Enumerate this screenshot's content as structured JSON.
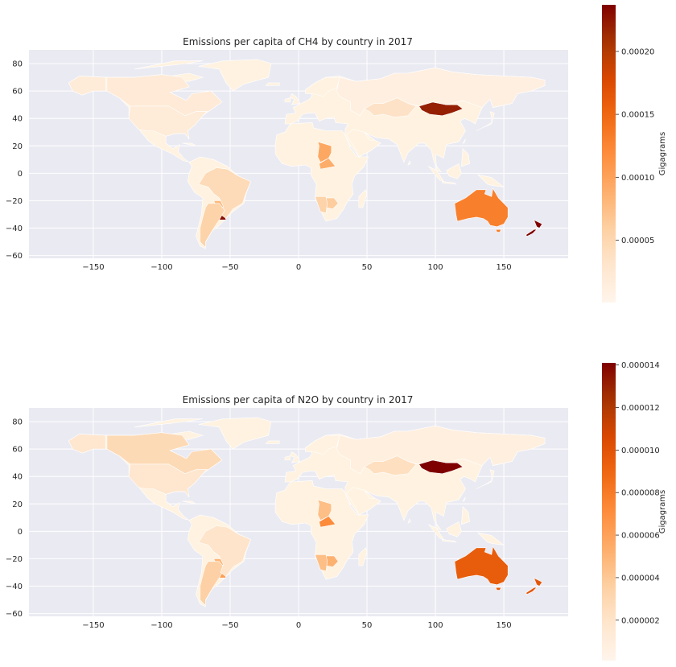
{
  "panels": [
    {
      "title": "Emissions per capita of CH4 by country in 2017",
      "colorbar": {
        "label": "Gigagrams",
        "min": 5e-07,
        "max": 0.000237,
        "ticks": [
          "0.00005",
          "0.00010",
          "0.00015",
          "0.00020"
        ],
        "tick_values": [
          5e-05,
          0.0001,
          0.00015,
          0.0002
        ]
      },
      "regions": [
        {
          "name": "Mongolia",
          "value": 0.00022
        },
        {
          "name": "Uruguay",
          "value": 0.00023
        },
        {
          "name": "New Zealand",
          "value": 0.000237
        },
        {
          "name": "Australia",
          "value": 0.00013
        },
        {
          "name": "Chad",
          "value": 9.5e-05
        },
        {
          "name": "Central African Republic",
          "value": 9e-05
        },
        {
          "name": "Botswana",
          "value": 6.2e-05
        },
        {
          "name": "Namibia",
          "value": 5.5e-05
        },
        {
          "name": "Paraguay",
          "value": 8e-05
        },
        {
          "name": "Brazil",
          "value": 4.5e-05
        },
        {
          "name": "Argentina",
          "value": 5.5e-05
        },
        {
          "name": "Canada",
          "value": 2.2e-05
        },
        {
          "name": "United States",
          "value": 2e-05
        },
        {
          "name": "Kazakhstan",
          "value": 3.5e-05
        },
        {
          "name": "Russia",
          "value": 1.2e-05
        }
      ]
    },
    {
      "title": "Emissions per capita of N2O by country in 2017",
      "colorbar": {
        "label": "Gigagrams",
        "min": 1e-07,
        "max": 1.41e-05,
        "ticks": [
          "0.000002",
          "0.000004",
          "0.000006",
          "0.000008",
          "0.000010",
          "0.000012",
          "0.000014"
        ],
        "tick_values": [
          2e-06,
          4e-06,
          6e-06,
          8e-06,
          1e-05,
          1.2e-05,
          1.4e-05
        ]
      },
      "regions": [
        {
          "name": "Mongolia",
          "value": 1.41e-05
        },
        {
          "name": "Australia",
          "value": 9.5e-06
        },
        {
          "name": "New Zealand",
          "value": 9.8e-06
        },
        {
          "name": "Central African Republic",
          "value": 7.2e-06
        },
        {
          "name": "Chad",
          "value": 4.5e-06
        },
        {
          "name": "Botswana",
          "value": 5.2e-06
        },
        {
          "name": "Namibia",
          "value": 4.5e-06
        },
        {
          "name": "Uruguay",
          "value": 6.2e-06
        },
        {
          "name": "Paraguay",
          "value": 5e-06
        },
        {
          "name": "Argentina",
          "value": 3.5e-06
        },
        {
          "name": "Brazil",
          "value": 2e-06
        },
        {
          "name": "Canada",
          "value": 2.8e-06
        },
        {
          "name": "United States",
          "value": 1.8e-06
        },
        {
          "name": "Kazakhstan",
          "value": 2.4e-06
        },
        {
          "name": "Russia",
          "value": 8e-07
        }
      ]
    }
  ],
  "axes": {
    "xlim": [
      -197,
      197
    ],
    "ylim": [
      -62,
      90
    ],
    "xticks": [
      -150,
      -100,
      -50,
      0,
      50,
      100,
      150
    ],
    "yticks": [
      -60,
      -40,
      -20,
      0,
      20,
      40,
      60,
      80
    ]
  },
  "colors": {
    "background": "#eaeaf2",
    "grid": "#ffffff",
    "country_border": "#ffffff",
    "land_base": "#fff2e0",
    "cmap": [
      "#fff5eb",
      "#fee6ce",
      "#fdd0a2",
      "#fdae6b",
      "#fd8d3c",
      "#f16913",
      "#d94801",
      "#a63603",
      "#7f0000"
    ]
  }
}
